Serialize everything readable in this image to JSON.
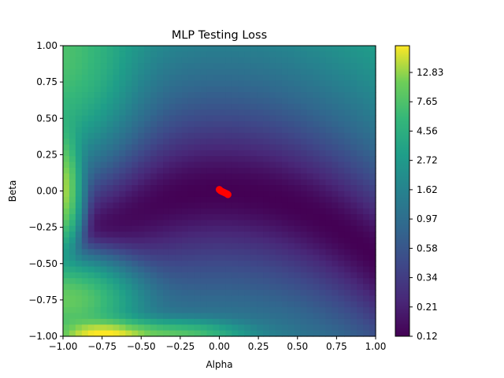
{
  "chart_data": {
    "type": "heatmap",
    "title": "MLP Testing Loss",
    "xlabel": "Alpha",
    "ylabel": "Beta",
    "xlim": [
      -1.0,
      1.0
    ],
    "ylim": [
      -1.0,
      1.0
    ],
    "xticks": [
      "−1.00",
      "−0.75",
      "−0.50",
      "−0.25",
      "0.00",
      "0.25",
      "0.50",
      "0.75",
      "1.00"
    ],
    "yticks": [
      "1.00",
      "0.75",
      "0.50",
      "0.25",
      "0.00",
      "−0.25",
      "−0.50",
      "−0.75",
      "−1.00"
    ],
    "colormap": "viridis",
    "colorbar": {
      "scale": "log",
      "min": 0.12,
      "max": 17.0,
      "tick_labels": [
        "12.83",
        "7.65",
        "4.56",
        "2.72",
        "1.62",
        "0.97",
        "0.58",
        "0.34",
        "0.21",
        "0.12"
      ]
    },
    "grid": false,
    "trajectory": {
      "color": "#ff0000",
      "points": [
        [
          0.0,
          0.01
        ],
        [
          0.005,
          0.005
        ],
        [
          0.01,
          0.0
        ],
        [
          0.02,
          -0.005
        ],
        [
          0.03,
          -0.01
        ],
        [
          0.04,
          -0.015
        ],
        [
          0.05,
          -0.02
        ],
        [
          0.055,
          -0.025
        ]
      ]
    }
  }
}
